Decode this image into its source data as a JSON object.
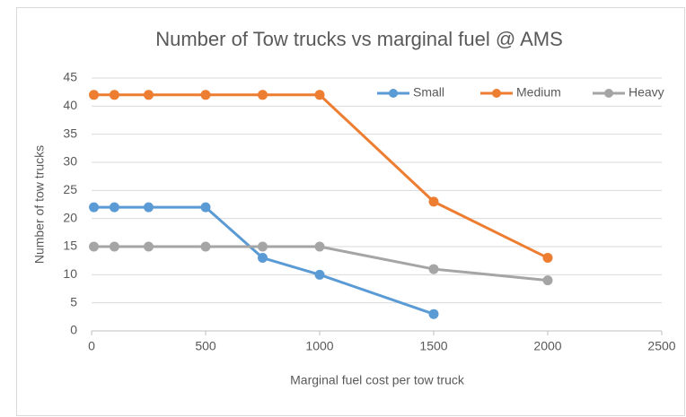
{
  "chart_data": {
    "type": "line",
    "title": "Number of Tow trucks vs marginal fuel  @ AMS",
    "x_label": "Marginal fuel cost per tow truck",
    "y_label": "Number of tow trucks",
    "x": [
      10,
      100,
      250,
      500,
      750,
      1000,
      1500,
      2000
    ],
    "series": [
      {
        "name": "Small",
        "color": "#5b9bd5",
        "values": [
          22,
          22,
          22,
          22,
          13,
          10,
          3,
          null
        ]
      },
      {
        "name": "Medium",
        "color": "#ed7d31",
        "values": [
          42,
          42,
          42,
          42,
          42,
          42,
          23,
          13
        ]
      },
      {
        "name": "Heavy",
        "color": "#a5a5a5",
        "values": [
          15,
          15,
          15,
          15,
          15,
          15,
          11,
          9
        ]
      }
    ],
    "xlim": [
      0,
      2500
    ],
    "xticks": [
      0,
      500,
      1000,
      1500,
      2000,
      2500
    ],
    "ylim": [
      0,
      45
    ],
    "yticks": [
      0,
      5,
      10,
      15,
      20,
      25,
      30,
      35,
      40,
      45
    ],
    "grid": true,
    "legend": "top-right"
  }
}
